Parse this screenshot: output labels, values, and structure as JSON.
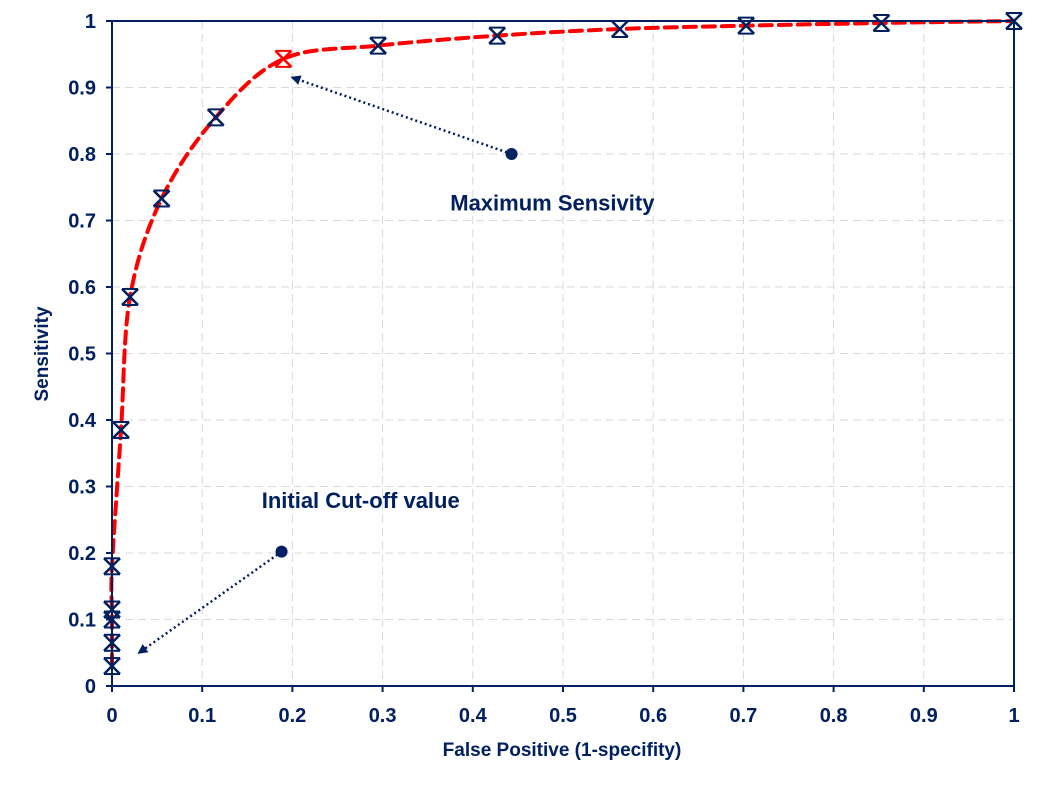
{
  "chart_data": {
    "type": "scatter",
    "title": "",
    "xlabel": "False Positive (1-specifity)",
    "ylabel": "Sensitivity",
    "xlim": [
      0,
      1
    ],
    "ylim": [
      0,
      1
    ],
    "xticks": [
      "0",
      "0.1",
      "0.2",
      "0.3",
      "0.4",
      "0.5",
      "0.6",
      "0.7",
      "0.8",
      "0.9",
      "1"
    ],
    "yticks": [
      "0",
      "0.1",
      "0.2",
      "0.3",
      "0.4",
      "0.5",
      "0.6",
      "0.7",
      "0.8",
      "0.9",
      "1"
    ],
    "grid": true,
    "legend": false,
    "series": [
      {
        "marker": "x-cross",
        "line": "dashed-smooth",
        "x": [
          0,
          0,
          0,
          0,
          0,
          0.01,
          0.02,
          0.055,
          0.115,
          0.19,
          0.295,
          0.427,
          0.563,
          0.703,
          0.853,
          1.0
        ],
        "y": [
          0.03,
          0.065,
          0.1,
          0.115,
          0.18,
          0.385,
          0.585,
          0.733,
          0.855,
          0.943,
          0.963,
          0.978,
          0.988,
          0.993,
          0.997,
          1.0
        ]
      }
    ],
    "highlight_point": {
      "x": 0.19,
      "y": 0.943
    },
    "annotations": [
      {
        "text": "Maximum Sensivity",
        "arrow_from": [
          0.443,
          0.8
        ],
        "arrow_to": [
          0.2,
          0.915
        ]
      },
      {
        "text": "Initial Cut-off value",
        "arrow_from": [
          0.188,
          0.202
        ],
        "arrow_to": [
          0.03,
          0.05
        ]
      }
    ],
    "colors": {
      "axis": "#002060",
      "markers": "#002060",
      "curve": "#ff0000",
      "highlight": "#ff0000",
      "grid": "#d9d9d9"
    }
  }
}
